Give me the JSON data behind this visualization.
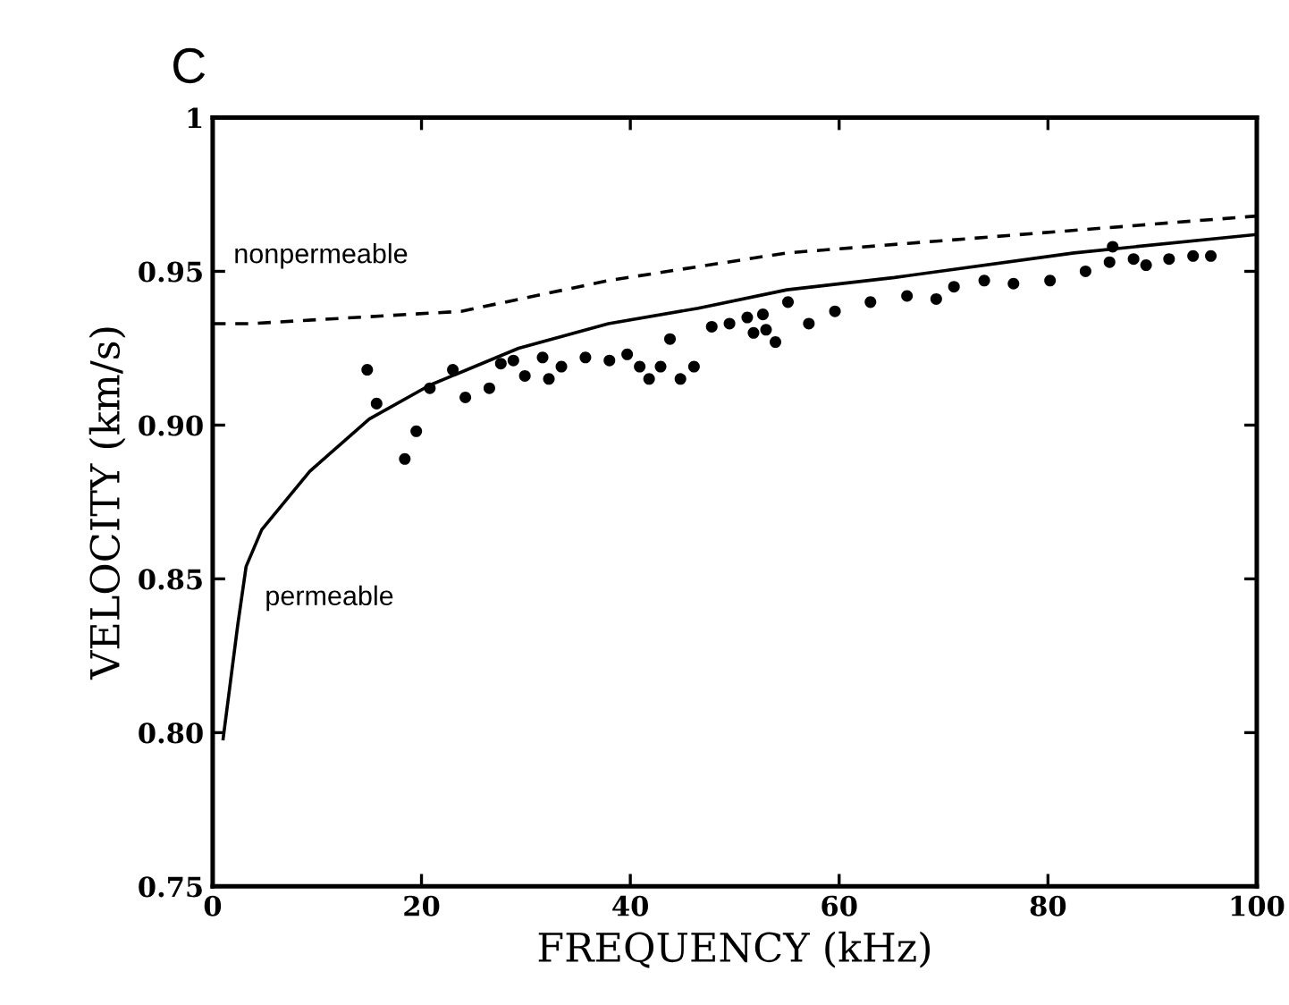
{
  "chart_data": {
    "type": "line",
    "title": "C",
    "xlabel": "FREQUENCY (kHz)",
    "ylabel": "VELOCITY (km/s)",
    "xlim": [
      0,
      100
    ],
    "ylim": [
      0.75,
      1.0
    ],
    "xticks": [
      0,
      20,
      40,
      60,
      80,
      100
    ],
    "yticks": [
      {
        "value": 0.75,
        "label": "0.75"
      },
      {
        "value": 0.8,
        "label": "0.80"
      },
      {
        "value": 0.85,
        "label": "0.85"
      },
      {
        "value": 0.9,
        "label": "0.90"
      },
      {
        "value": 0.95,
        "label": "0.95"
      },
      {
        "value": 1.0,
        "label": "1"
      }
    ],
    "grid": false,
    "legend": false,
    "annotations": [
      "nonpermeable",
      "permeable"
    ],
    "series": [
      {
        "line_style": "dashed",
        "color": "#000000",
        "x": [
          0,
          3.6,
          23.8,
          37.9,
          55,
          100
        ],
        "values": [
          0.933,
          0.933,
          0.937,
          0.947,
          0.956,
          0.968
        ]
      },
      {
        "line_style": "solid",
        "color": "#000000",
        "x": [
          1.0,
          2.4,
          3.2,
          4.7,
          9.3,
          15.0,
          20.8,
          29.3,
          37.9,
          46.5,
          55,
          65.3,
          82.5,
          100
        ],
        "values": [
          0.798,
          0.835,
          0.854,
          0.866,
          0.885,
          0.902,
          0.913,
          0.925,
          0.933,
          0.938,
          0.944,
          0.948,
          0.956,
          0.962
        ]
      },
      {
        "type": "scatter",
        "marker": "circle",
        "color": "#000000",
        "x": [
          14.8,
          15.7,
          18.4,
          19.5,
          20.8,
          23.0,
          24.2,
          26.5,
          27.6,
          28.8,
          29.9,
          31.6,
          32.2,
          33.4,
          35.7,
          38.0,
          39.7,
          40.9,
          41.8,
          42.9,
          43.8,
          44.8,
          46.1,
          47.8,
          49.5,
          51.2,
          51.8,
          52.7,
          53.0,
          53.9,
          55.1,
          57.1,
          59.6,
          63.0,
          66.5,
          69.3,
          71.0,
          73.9,
          76.7,
          80.2,
          83.6,
          85.9,
          86.2,
          88.2,
          89.4,
          91.6,
          93.9,
          95.6
        ],
        "values": [
          0.918,
          0.907,
          0.889,
          0.898,
          0.912,
          0.918,
          0.909,
          0.912,
          0.92,
          0.921,
          0.916,
          0.922,
          0.915,
          0.919,
          0.922,
          0.921,
          0.923,
          0.919,
          0.915,
          0.919,
          0.928,
          0.915,
          0.919,
          0.932,
          0.933,
          0.935,
          0.93,
          0.936,
          0.931,
          0.927,
          0.94,
          0.933,
          0.937,
          0.94,
          0.942,
          0.941,
          0.945,
          0.947,
          0.946,
          0.947,
          0.95,
          0.953,
          0.958,
          0.954,
          0.952,
          0.954,
          0.955,
          0.955
        ]
      }
    ]
  }
}
